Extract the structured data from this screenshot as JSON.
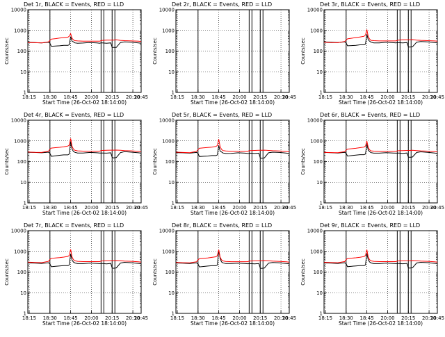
{
  "figure": {
    "xlabel": "Start Time (26-Oct-02 18:14:00)",
    "ylabel": "Counts/sec",
    "x_tick_labels": [
      "18:15",
      "18:30",
      "18:45",
      "20:00",
      "20:15",
      "20:30",
      "20:45"
    ],
    "y_tick_labels": [
      "1",
      "10",
      "100",
      "1000",
      "10000"
    ],
    "colors": {
      "events": "#000000",
      "lld": "#ff0000",
      "background": "#ffffff"
    }
  },
  "chart_data": [
    {
      "type": "line",
      "title": "Det 1r, BLACK = Events, RED = LLD",
      "xlabel": "Start Time (26-Oct-02 18:14:00)",
      "ylabel": "Counts/sec",
      "xlim": [
        0,
        82
      ],
      "ylim": [
        1,
        10000
      ],
      "yscale": "log",
      "grid": "dotted",
      "vlines": [
        16,
        53,
        55,
        61,
        63
      ],
      "data_gap": [],
      "x": [
        0,
        5,
        10,
        15,
        16,
        17,
        20,
        23,
        26,
        29,
        30,
        31,
        32,
        33,
        34,
        36,
        40,
        45,
        50,
        52,
        53,
        54,
        57,
        60,
        61,
        62,
        64,
        67,
        70,
        75,
        80,
        82
      ],
      "series": [
        {
          "name": "BLACK = Events",
          "values": [
            270,
            260,
            250,
            270,
            240,
            170,
            175,
            180,
            190,
            190,
            200,
            500,
            300,
            280,
            250,
            240,
            245,
            260,
            250,
            240,
            250,
            250,
            240,
            250,
            150,
            150,
            150,
            260,
            280,
            270,
            250,
            240
          ]
        },
        {
          "name": "RED = LLD",
          "values": [
            260,
            255,
            250,
            280,
            330,
            380,
            400,
            430,
            450,
            470,
            520,
            700,
            420,
            350,
            320,
            310,
            300,
            300,
            300,
            300,
            320,
            330,
            340,
            340,
            340,
            340,
            350,
            330,
            320,
            310,
            300,
            290
          ]
        }
      ]
    },
    {
      "type": "line",
      "title": "Det 2r, BLACK = Events, RED = LLD",
      "xlabel": "Start Time (26-Oct-02 18:14:00)",
      "ylabel": "Counts/sec",
      "xlim": [
        0,
        82
      ],
      "ylim": [
        1,
        10000
      ],
      "yscale": "log",
      "grid": "dotted",
      "vlines": [
        16,
        53,
        55,
        61,
        63
      ],
      "data_gap": [],
      "x": [],
      "series": []
    },
    {
      "type": "line",
      "title": "Det 3r, BLACK = Events, RED = LLD",
      "xlabel": "Start Time (26-Oct-02 18:14:00)",
      "ylabel": "Counts/sec",
      "xlim": [
        0,
        82
      ],
      "ylim": [
        1,
        10000
      ],
      "yscale": "log",
      "grid": "dotted",
      "vlines": [
        16,
        53,
        55,
        61,
        63
      ],
      "data_gap": [],
      "x": [
        0,
        5,
        10,
        15,
        16,
        17,
        20,
        23,
        26,
        29,
        30,
        31,
        32,
        33,
        34,
        36,
        40,
        45,
        50,
        52,
        53,
        54,
        57,
        60,
        61,
        62,
        64,
        67,
        70,
        75,
        80,
        82
      ],
      "series": [
        {
          "name": "BLACK = Events",
          "values": [
            280,
            270,
            260,
            280,
            250,
            180,
            185,
            190,
            200,
            200,
            220,
            650,
            350,
            300,
            270,
            250,
            250,
            270,
            255,
            250,
            255,
            255,
            250,
            260,
            160,
            155,
            160,
            270,
            290,
            280,
            260,
            250
          ]
        },
        {
          "name": "RED = LLD",
          "values": [
            270,
            260,
            255,
            290,
            340,
            390,
            420,
            450,
            480,
            520,
            600,
            1100,
            500,
            380,
            330,
            320,
            310,
            310,
            310,
            310,
            330,
            340,
            350,
            350,
            350,
            350,
            360,
            340,
            330,
            320,
            310,
            300
          ]
        }
      ]
    },
    {
      "type": "line",
      "title": "Det 4r, BLACK = Events, RED = LLD",
      "xlabel": "Start Time (26-Oct-02 18:14:00)",
      "ylabel": "Counts/sec",
      "xlim": [
        0,
        82
      ],
      "ylim": [
        1,
        10000
      ],
      "yscale": "log",
      "grid": "dotted",
      "vlines": [
        16,
        53,
        55,
        61,
        63
      ],
      "data_gap": [],
      "x": [
        0,
        5,
        10,
        15,
        16,
        17,
        20,
        23,
        26,
        29,
        30,
        31,
        32,
        33,
        34,
        36,
        40,
        45,
        50,
        52,
        53,
        54,
        57,
        60,
        61,
        62,
        64,
        67,
        70,
        75,
        80,
        82
      ],
      "series": [
        {
          "name": "BLACK = Events",
          "values": [
            280,
            275,
            265,
            285,
            250,
            180,
            190,
            200,
            210,
            210,
            230,
            900,
            400,
            310,
            280,
            260,
            260,
            275,
            265,
            260,
            260,
            260,
            255,
            265,
            160,
            150,
            155,
            270,
            300,
            285,
            265,
            255
          ]
        },
        {
          "name": "RED = LLD",
          "values": [
            290,
            280,
            275,
            320,
            400,
            450,
            470,
            490,
            520,
            560,
            620,
            1300,
            550,
            400,
            350,
            330,
            320,
            320,
            320,
            320,
            340,
            345,
            350,
            355,
            355,
            355,
            360,
            350,
            340,
            330,
            315,
            300
          ]
        }
      ]
    },
    {
      "type": "line",
      "title": "Det 5r, BLACK = Events, RED = LLD",
      "xlabel": "Start Time (26-Oct-02 18:14:00)",
      "ylabel": "Counts/sec",
      "xlim": [
        0,
        82
      ],
      "ylim": [
        1,
        10000
      ],
      "yscale": "log",
      "grid": "dotted",
      "vlines": [
        16,
        53,
        55,
        61,
        63
      ],
      "data_gap": [],
      "x": [
        0,
        5,
        10,
        15,
        16,
        17,
        20,
        23,
        26,
        29,
        30,
        31,
        32,
        33,
        34,
        36,
        40,
        45,
        50,
        52,
        53,
        54,
        57,
        60,
        61,
        62,
        64,
        67,
        70,
        75,
        80,
        82
      ],
      "series": [
        {
          "name": "BLACK = Events",
          "values": [
            270,
            265,
            255,
            275,
            245,
            175,
            180,
            185,
            195,
            195,
            210,
            600,
            320,
            290,
            260,
            245,
            250,
            265,
            255,
            245,
            250,
            255,
            245,
            255,
            150,
            145,
            150,
            265,
            285,
            275,
            255,
            245
          ]
        },
        {
          "name": "RED = LLD",
          "values": [
            285,
            275,
            270,
            310,
            380,
            440,
            460,
            480,
            500,
            540,
            600,
            1200,
            520,
            390,
            340,
            325,
            315,
            315,
            315,
            315,
            335,
            340,
            345,
            350,
            350,
            350,
            355,
            345,
            335,
            325,
            310,
            295
          ]
        }
      ]
    },
    {
      "type": "line",
      "title": "Det 6r, BLACK = Events, RED = LLD",
      "xlabel": "Start Time (26-Oct-02 18:14:00)",
      "ylabel": "Counts/sec",
      "xlim": [
        0,
        82
      ],
      "ylim": [
        1,
        10000
      ],
      "yscale": "log",
      "grid": "dotted",
      "vlines": [
        16,
        53,
        55,
        61,
        63
      ],
      "data_gap": [],
      "x": [
        0,
        5,
        10,
        15,
        16,
        17,
        20,
        23,
        26,
        29,
        30,
        31,
        32,
        33,
        34,
        36,
        40,
        45,
        50,
        52,
        53,
        54,
        57,
        60,
        61,
        62,
        64,
        67,
        70,
        75,
        80,
        82
      ],
      "series": [
        {
          "name": "BLACK = Events",
          "values": [
            275,
            270,
            260,
            280,
            250,
            185,
            195,
            205,
            215,
            215,
            230,
            700,
            360,
            300,
            270,
            255,
            255,
            270,
            260,
            255,
            255,
            260,
            250,
            260,
            165,
            160,
            165,
            275,
            295,
            280,
            260,
            250
          ]
        },
        {
          "name": "RED = LLD",
          "values": [
            280,
            272,
            268,
            300,
            360,
            400,
            420,
            440,
            470,
            500,
            560,
            1000,
            480,
            370,
            330,
            320,
            310,
            310,
            310,
            310,
            330,
            335,
            340,
            345,
            345,
            345,
            350,
            340,
            330,
            320,
            305,
            290
          ]
        }
      ]
    },
    {
      "type": "line",
      "title": "Det 7r, BLACK = Events, RED = LLD",
      "xlabel": "Start Time (26-Oct-02 18:14:00)",
      "ylabel": "Counts/sec",
      "xlim": [
        0,
        82
      ],
      "ylim": [
        1,
        10000
      ],
      "yscale": "log",
      "grid": "dotted",
      "vlines": [
        16,
        53,
        55,
        61,
        63
      ],
      "data_gap": [],
      "x": [
        0,
        5,
        10,
        15,
        16,
        17,
        20,
        23,
        26,
        29,
        30,
        31,
        32,
        33,
        34,
        36,
        40,
        45,
        50,
        52,
        53,
        54,
        57,
        60,
        61,
        62,
        64,
        67,
        70,
        75,
        80,
        82
      ],
      "series": [
        {
          "name": "BLACK = Events",
          "values": [
            280,
            272,
            262,
            282,
            250,
            180,
            188,
            196,
            205,
            205,
            220,
            750,
            380,
            305,
            275,
            255,
            255,
            272,
            262,
            255,
            258,
            258,
            250,
            262,
            158,
            152,
            158,
            272,
            295,
            282,
            262,
            252
          ]
        },
        {
          "name": "RED = LLD",
          "values": [
            300,
            290,
            285,
            330,
            410,
            460,
            480,
            500,
            530,
            570,
            640,
            1250,
            540,
            400,
            350,
            330,
            320,
            320,
            320,
            320,
            340,
            345,
            350,
            355,
            355,
            355,
            360,
            350,
            340,
            330,
            315,
            300
          ]
        }
      ]
    },
    {
      "type": "line",
      "title": "Det 8r, BLACK = Events, RED = LLD",
      "xlabel": "Start Time (26-Oct-02 18:14:00)",
      "ylabel": "Counts/sec",
      "xlim": [
        0,
        82
      ],
      "ylim": [
        1,
        10000
      ],
      "yscale": "log",
      "grid": "dotted",
      "vlines": [
        16,
        53,
        55,
        61,
        63
      ],
      "data_gap": [],
      "x": [
        0,
        5,
        10,
        15,
        16,
        17,
        20,
        23,
        26,
        29,
        30,
        31,
        32,
        33,
        34,
        36,
        40,
        45,
        50,
        52,
        53,
        54,
        57,
        60,
        61,
        62,
        64,
        67,
        70,
        75,
        80,
        82
      ],
      "series": [
        {
          "name": "BLACK = Events",
          "values": [
            275,
            268,
            258,
            278,
            248,
            178,
            186,
            194,
            202,
            202,
            218,
            1150,
            450,
            310,
            278,
            258,
            258,
            270,
            260,
            252,
            256,
            256,
            248,
            258,
            156,
            150,
            156,
            270,
            292,
            280,
            260,
            250
          ]
        },
        {
          "name": "RED = LLD",
          "values": [
            290,
            282,
            278,
            315,
            390,
            440,
            460,
            480,
            510,
            550,
            620,
            1200,
            520,
            390,
            345,
            328,
            318,
            318,
            318,
            318,
            338,
            342,
            348,
            352,
            352,
            352,
            358,
            348,
            338,
            328,
            312,
            298
          ]
        }
      ]
    },
    {
      "type": "line",
      "title": "Det 9r, BLACK = Events, RED = LLD",
      "xlabel": "Start Time (26-Oct-02 18:14:00)",
      "ylabel": "Counts/sec",
      "xlim": [
        0,
        82
      ],
      "ylim": [
        1,
        10000
      ],
      "yscale": "log",
      "grid": "dotted",
      "vlines": [
        16,
        53,
        55,
        61,
        63
      ],
      "data_gap": [],
      "x": [
        0,
        5,
        10,
        15,
        16,
        17,
        20,
        23,
        26,
        29,
        30,
        31,
        32,
        33,
        34,
        36,
        40,
        45,
        50,
        52,
        53,
        54,
        57,
        60,
        61,
        62,
        64,
        67,
        70,
        75,
        80,
        82
      ],
      "series": [
        {
          "name": "BLACK = Events",
          "values": [
            280,
            272,
            262,
            282,
            252,
            182,
            190,
            198,
            206,
            206,
            222,
            800,
            390,
            308,
            276,
            256,
            256,
            272,
            262,
            256,
            258,
            258,
            252,
            262,
            160,
            154,
            160,
            274,
            296,
            284,
            264,
            254
          ]
        },
        {
          "name": "RED = LLD",
          "values": [
            295,
            286,
            282,
            322,
            400,
            450,
            470,
            490,
            520,
            560,
            630,
            1220,
            530,
            395,
            348,
            330,
            320,
            320,
            320,
            320,
            340,
            344,
            350,
            354,
            354,
            354,
            360,
            350,
            340,
            330,
            314,
            300
          ]
        }
      ]
    }
  ]
}
